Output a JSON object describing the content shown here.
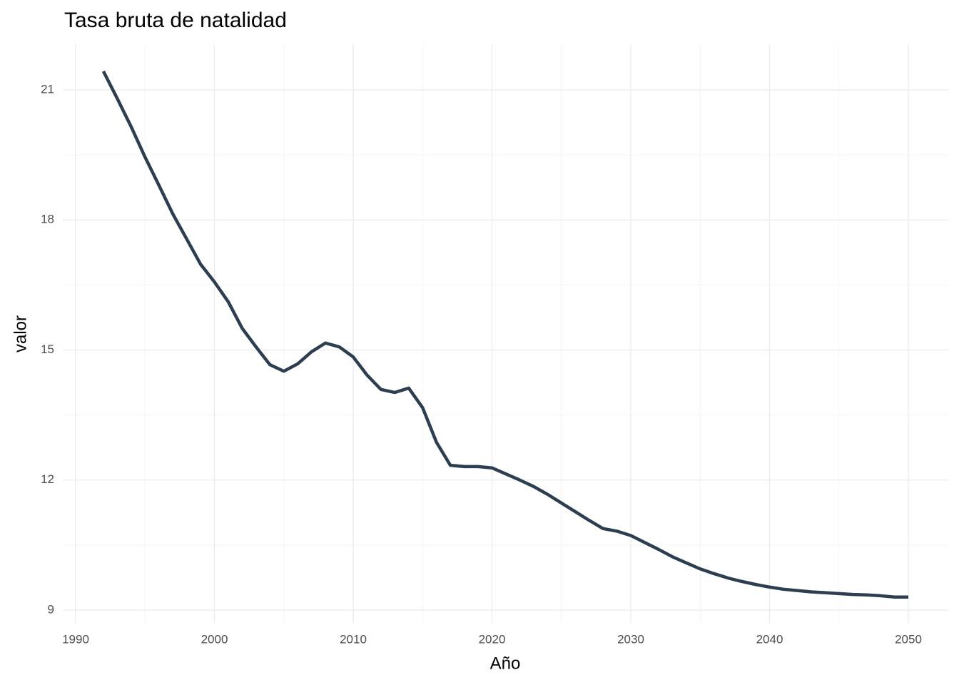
{
  "chart_data": {
    "type": "line",
    "title": "Tasa bruta de natalidad",
    "x_label": "Año",
    "y_label": "valor",
    "x": [
      1992,
      1993,
      1994,
      1995,
      1996,
      1997,
      1998,
      1999,
      2000,
      2001,
      2002,
      2003,
      2004,
      2005,
      2006,
      2007,
      2008,
      2009,
      2010,
      2011,
      2012,
      2013,
      2014,
      2015,
      2016,
      2017,
      2018,
      2019,
      2020,
      2021,
      2022,
      2023,
      2024,
      2025,
      2026,
      2027,
      2028,
      2029,
      2030,
      2031,
      2032,
      2033,
      2034,
      2035,
      2036,
      2037,
      2038,
      2039,
      2040,
      2041,
      2042,
      2043,
      2044,
      2045,
      2046,
      2047,
      2048,
      2049,
      2050
    ],
    "series": [
      {
        "name": "valor",
        "color": "#2c3e50",
        "values": [
          21.43,
          20.8,
          20.15,
          19.45,
          18.8,
          18.14,
          17.56,
          16.98,
          16.57,
          16.11,
          15.5,
          15.07,
          14.66,
          14.51,
          14.68,
          14.96,
          15.16,
          15.07,
          14.84,
          14.42,
          14.09,
          14.02,
          14.12,
          13.67,
          12.87,
          12.34,
          12.31,
          12.31,
          12.28,
          12.14,
          12.0,
          11.85,
          11.67,
          11.47,
          11.27,
          11.07,
          10.88,
          10.82,
          10.72,
          10.56,
          10.4,
          10.23,
          10.09,
          9.95,
          9.84,
          9.74,
          9.66,
          9.59,
          9.53,
          9.48,
          9.45,
          9.42,
          9.4,
          9.38,
          9.36,
          9.35,
          9.33,
          9.3,
          9.3
        ]
      }
    ],
    "xlim": [
      1989.1,
      2052.9
    ],
    "xticks": [
      1990,
      2000,
      2010,
      2020,
      2030,
      2040,
      2050
    ],
    "ylim": [
      8.7,
      22.05
    ],
    "yticks": [
      9,
      12,
      15,
      18,
      21
    ],
    "grid": true
  }
}
